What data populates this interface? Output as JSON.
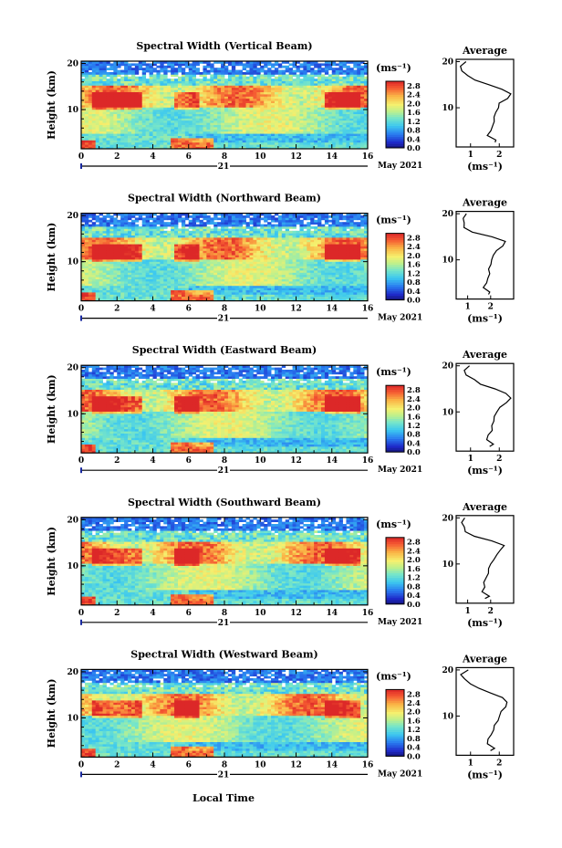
{
  "figure": {
    "xlabel_bottom": "Local Time",
    "date_day": "21",
    "date_month": "May 2021"
  },
  "colorbar": {
    "unit_label": "(ms⁻¹)",
    "tick_labels": [
      "2.8",
      "2.4",
      "2.0",
      "1.6",
      "1.2",
      "0.8",
      "0.4",
      "0.0"
    ],
    "range": [
      0.0,
      3.0
    ]
  },
  "chart_data": [
    {
      "type": "heatmap",
      "title": "Spectral Width (Vertical Beam)",
      "ylabel": "Height (km)",
      "xlim": [
        0,
        16
      ],
      "ylim": [
        1.5,
        20.5
      ],
      "xticks": [
        "0",
        "2",
        "4",
        "6",
        "8",
        "10",
        "12",
        "14",
        "16"
      ],
      "yticks": [
        "10",
        "20"
      ],
      "profile": {
        "title": "Average",
        "xlabel": "(ms⁻¹)",
        "xlim": [
          0.5,
          2.5
        ],
        "xticks": [
          "1",
          "2"
        ],
        "yticks": [
          "10",
          "20"
        ],
        "heights": [
          2.5,
          3,
          4,
          5,
          6,
          7,
          8,
          9,
          10,
          11,
          12,
          13,
          14,
          15,
          16,
          17,
          18,
          19,
          20
        ],
        "values": [
          1.8,
          1.9,
          1.6,
          1.7,
          1.75,
          1.8,
          1.85,
          1.9,
          1.95,
          2.05,
          2.3,
          2.4,
          2.1,
          1.6,
          1.1,
          0.85,
          0.75,
          0.7,
          0.8
        ]
      }
    },
    {
      "type": "heatmap",
      "title": "Spectral Width (Northward Beam)",
      "ylabel": "Height (km)",
      "xlim": [
        0,
        16
      ],
      "ylim": [
        1.5,
        20.5
      ],
      "xticks": [
        "0",
        "2",
        "4",
        "6",
        "8",
        "10",
        "12",
        "14",
        "16"
      ],
      "yticks": [
        "10",
        "20"
      ],
      "profile": {
        "title": "Average",
        "xlabel": "(ms⁻¹)",
        "xlim": [
          0.5,
          3.0
        ],
        "xticks": [
          "1",
          "2"
        ],
        "yticks": [
          "10",
          "20"
        ],
        "heights": [
          2.5,
          3,
          4,
          5,
          6,
          7,
          8,
          9,
          10,
          11,
          12,
          13,
          14,
          15,
          16,
          17,
          18,
          19,
          20
        ],
        "values": [
          1.9,
          2.0,
          1.7,
          1.8,
          1.85,
          1.9,
          1.95,
          2.0,
          2.05,
          2.15,
          2.3,
          2.5,
          2.6,
          2.0,
          1.2,
          0.9,
          0.8,
          0.75,
          0.9
        ]
      }
    },
    {
      "type": "heatmap",
      "title": "Spectral Width (Eastward Beam)",
      "ylabel": "Height (km)",
      "xlim": [
        0,
        16
      ],
      "ylim": [
        1.5,
        20.5
      ],
      "xticks": [
        "0",
        "2",
        "4",
        "6",
        "8",
        "10",
        "12",
        "14",
        "16"
      ],
      "yticks": [
        "10",
        "20"
      ],
      "profile": {
        "title": "Average",
        "xlabel": "(ms⁻¹)",
        "xlim": [
          0.5,
          2.5
        ],
        "xticks": [
          "1",
          "2"
        ],
        "yticks": [
          "10",
          "20"
        ],
        "heights": [
          2.5,
          3,
          4,
          5,
          6,
          7,
          8,
          9,
          10,
          11,
          12,
          13,
          14,
          15,
          16,
          17,
          18,
          19,
          20
        ],
        "values": [
          1.7,
          1.8,
          1.55,
          1.65,
          1.7,
          1.75,
          1.8,
          1.85,
          1.9,
          2.0,
          2.2,
          2.35,
          2.2,
          1.9,
          1.4,
          1.1,
          0.9,
          0.8,
          1.0
        ]
      }
    },
    {
      "type": "heatmap",
      "title": "Spectral Width (Southward Beam)",
      "ylabel": "Height (km)",
      "xlim": [
        0,
        16
      ],
      "ylim": [
        1.5,
        20.5
      ],
      "xticks": [
        "0",
        "2",
        "4",
        "6",
        "8",
        "10",
        "12",
        "14",
        "16"
      ],
      "yticks": [
        "10",
        "20"
      ],
      "profile": {
        "title": "Average",
        "xlabel": "(ms⁻¹)",
        "xlim": [
          0.5,
          3.0
        ],
        "xticks": [
          "1",
          "2"
        ],
        "yticks": [
          "10",
          "20"
        ],
        "heights": [
          2.5,
          3,
          4,
          5,
          6,
          7,
          8,
          9,
          10,
          11,
          12,
          13,
          14,
          15,
          16,
          17,
          18,
          19,
          20
        ],
        "values": [
          1.8,
          1.9,
          1.6,
          1.7,
          1.75,
          1.8,
          1.9,
          1.95,
          2.0,
          2.1,
          2.3,
          2.45,
          2.55,
          2.0,
          1.3,
          0.95,
          0.8,
          0.7,
          0.85
        ]
      }
    },
    {
      "type": "heatmap",
      "title": "Spectral Width (Westward Beam)",
      "ylabel": "Height (km)",
      "xlim": [
        0,
        16
      ],
      "ylim": [
        1.5,
        20.5
      ],
      "xticks": [
        "0",
        "2",
        "4",
        "6",
        "8",
        "10",
        "12",
        "14",
        "16"
      ],
      "yticks": [
        "10",
        "20"
      ],
      "profile": {
        "title": "Average",
        "xlabel": "(ms⁻¹)",
        "xlim": [
          0.5,
          2.5
        ],
        "xticks": [
          "1",
          "2"
        ],
        "yticks": [
          "10",
          "20"
        ],
        "heights": [
          2.5,
          3,
          4,
          5,
          6,
          7,
          8,
          9,
          10,
          11,
          12,
          13,
          14,
          15,
          16,
          17,
          18,
          19,
          20
        ],
        "values": [
          1.7,
          1.85,
          1.6,
          1.65,
          1.7,
          1.75,
          1.8,
          1.9,
          1.95,
          2.05,
          2.2,
          2.3,
          2.15,
          1.7,
          1.3,
          1.0,
          0.75,
          0.6,
          0.9
        ]
      }
    }
  ]
}
